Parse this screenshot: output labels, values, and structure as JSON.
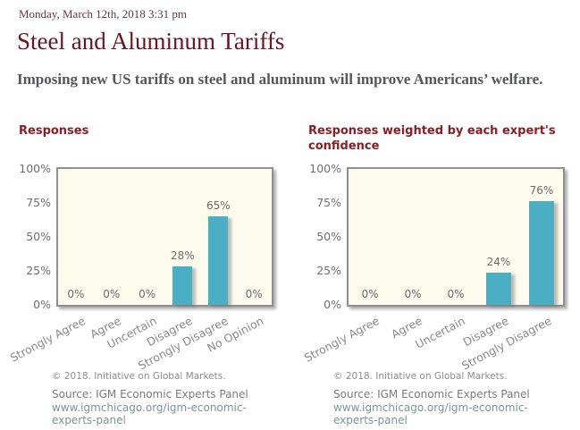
{
  "header": {
    "date": "Monday, March 12th, 2018 3:31 pm",
    "title": "Steel and Aluminum Tariffs",
    "question": "Imposing new US tariffs on steel and aluminum will improve Americans’ welfare."
  },
  "footer": {
    "copyright": "© 2018. Initiative on Global Markets.",
    "source_label": "Source: IGM Economic Experts Panel",
    "link": "www.igmchicago.org/igm-economic-experts-panel"
  },
  "colors": {
    "bar": "#4aafc5",
    "accent_title": "#691524",
    "chart_title": "#8b1e24",
    "date_text": "#5e3a40",
    "plot_bg": "#fdfaee",
    "link": "#7b9696"
  },
  "chart_data": [
    {
      "type": "bar",
      "title": "Responses",
      "categories": [
        "Strongly Agree",
        "Agree",
        "Uncertain",
        "Disagree",
        "Strongly Disagree",
        "No Opinion"
      ],
      "values": [
        0,
        0,
        0,
        28,
        65,
        0
      ],
      "yticks": [
        "100%",
        "75%",
        "50%",
        "25%",
        "0%"
      ],
      "ylim": [
        0,
        100
      ],
      "ylabel": "",
      "xlabel": "",
      "grid": false,
      "legend": false,
      "data_labels": true
    },
    {
      "type": "bar",
      "title": "Responses weighted by each expert's confidence",
      "categories": [
        "Strongly Agree",
        "Agree",
        "Uncertain",
        "Disagree",
        "Strongly Disagree"
      ],
      "values": [
        0,
        0,
        0,
        24,
        76
      ],
      "yticks": [
        "100%",
        "75%",
        "50%",
        "25%",
        "0%"
      ],
      "ylim": [
        0,
        100
      ],
      "ylabel": "",
      "xlabel": "",
      "grid": false,
      "legend": false,
      "data_labels": true
    }
  ]
}
